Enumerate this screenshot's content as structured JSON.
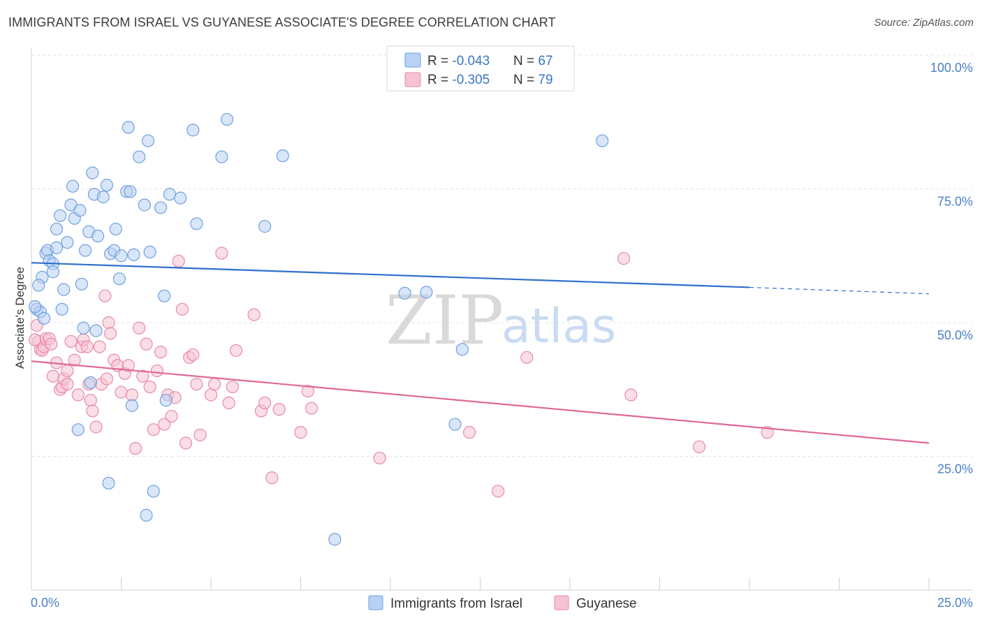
{
  "title": "IMMIGRANTS FROM ISRAEL VS GUYANESE ASSOCIATE'S DEGREE CORRELATION CHART",
  "source": "Source: ZipAtlas.com",
  "watermark": {
    "zip": "ZIP",
    "atlas": "atlas"
  },
  "colors": {
    "blue": "#6fa0e0",
    "blue_fill": "#b9d2f3",
    "blue_line": "#2f6fcc",
    "pink": "#e88aa8",
    "pink_fill": "#f5c3d3",
    "pink_line": "#e0689a"
  },
  "legend": {
    "rows": [
      {
        "r_label": "R = ",
        "r_value": "-0.043",
        "n_label": "N = ",
        "n_value": "67"
      },
      {
        "r_label": "R = ",
        "r_value": "-0.305",
        "n_label": "N = ",
        "n_value": "79"
      }
    ]
  },
  "bottom_legend": [
    "Immigrants from Israel",
    "Guyanese"
  ],
  "chart_data": {
    "type": "scatter",
    "xlabel": "",
    "ylabel": "Associate's Degree",
    "xlim": [
      0,
      25
    ],
    "ylim": [
      0,
      100
    ],
    "x_tick_labels": [
      "0.0%",
      "25.0%"
    ],
    "y_ticks": [
      25,
      50,
      75,
      100
    ],
    "y_tick_labels": [
      "25.0%",
      "50.0%",
      "75.0%",
      "100.0%"
    ],
    "grid": true,
    "legend_position": "top-center",
    "series": [
      {
        "name": "Immigrants from Israel",
        "color": "blue",
        "trend": {
          "x0": 0,
          "y0": 61.2,
          "x1": 20,
          "y1": 56.6,
          "dashed_to": 25,
          "dashed_y": 55.4
        },
        "points": [
          [
            0.15,
            52.5
          ],
          [
            0.25,
            52
          ],
          [
            0.3,
            58.5
          ],
          [
            0.35,
            50.8
          ],
          [
            0.4,
            63
          ],
          [
            0.45,
            63.5
          ],
          [
            0.5,
            61.6
          ],
          [
            0.6,
            61
          ],
          [
            0.6,
            59.5
          ],
          [
            0.7,
            64
          ],
          [
            0.7,
            67.5
          ],
          [
            0.8,
            70
          ],
          [
            0.85,
            52.5
          ],
          [
            0.9,
            56.2
          ],
          [
            1.0,
            65
          ],
          [
            1.1,
            72
          ],
          [
            1.15,
            75.5
          ],
          [
            1.2,
            69.5
          ],
          [
            1.3,
            30
          ],
          [
            1.35,
            71
          ],
          [
            1.4,
            57.2
          ],
          [
            1.45,
            49
          ],
          [
            1.5,
            63.5
          ],
          [
            1.6,
            67
          ],
          [
            1.65,
            38.8
          ],
          [
            1.7,
            78
          ],
          [
            1.75,
            74
          ],
          [
            1.8,
            48.5
          ],
          [
            1.85,
            66.2
          ],
          [
            2.0,
            73.5
          ],
          [
            2.1,
            75.7
          ],
          [
            2.15,
            20
          ],
          [
            2.2,
            62.9
          ],
          [
            2.3,
            63.5
          ],
          [
            2.35,
            67.5
          ],
          [
            2.45,
            58.2
          ],
          [
            2.5,
            62.5
          ],
          [
            2.65,
            74.5
          ],
          [
            2.7,
            86.5
          ],
          [
            2.75,
            74.5
          ],
          [
            2.8,
            34.5
          ],
          [
            2.85,
            62.7
          ],
          [
            3.0,
            81
          ],
          [
            3.15,
            72
          ],
          [
            3.2,
            14
          ],
          [
            3.25,
            84
          ],
          [
            3.3,
            63.2
          ],
          [
            3.4,
            18.5
          ],
          [
            3.6,
            71.5
          ],
          [
            3.7,
            55
          ],
          [
            3.75,
            35.5
          ],
          [
            3.85,
            74
          ],
          [
            4.15,
            73.3
          ],
          [
            4.5,
            86
          ],
          [
            4.6,
            68.5
          ],
          [
            5.3,
            81
          ],
          [
            5.45,
            88
          ],
          [
            6.5,
            68
          ],
          [
            7.0,
            81.2
          ],
          [
            8.45,
            9.5
          ],
          [
            10.4,
            55.5
          ],
          [
            11.0,
            55.7
          ],
          [
            11.8,
            31
          ],
          [
            12.0,
            45
          ],
          [
            15.9,
            84
          ],
          [
            0.1,
            53
          ],
          [
            0.2,
            57
          ]
        ]
      },
      {
        "name": "Guyanese",
        "color": "pink",
        "trend": {
          "x0": 0,
          "y0": 42.8,
          "x1": 25,
          "y1": 27.5
        },
        "points": [
          [
            0.15,
            49.5
          ],
          [
            0.2,
            46.5
          ],
          [
            0.25,
            45
          ],
          [
            0.3,
            44.8
          ],
          [
            0.35,
            45.5
          ],
          [
            0.4,
            47
          ],
          [
            0.5,
            47
          ],
          [
            0.55,
            46
          ],
          [
            0.6,
            40
          ],
          [
            0.7,
            42.5
          ],
          [
            0.8,
            37.5
          ],
          [
            0.85,
            38
          ],
          [
            0.9,
            39.5
          ],
          [
            1.0,
            38.5
          ],
          [
            1.1,
            46.5
          ],
          [
            1.2,
            43
          ],
          [
            1.3,
            36.5
          ],
          [
            1.4,
            45.5
          ],
          [
            1.45,
            46.8
          ],
          [
            1.55,
            45.5
          ],
          [
            1.6,
            38.5
          ],
          [
            1.65,
            35.5
          ],
          [
            1.7,
            33.5
          ],
          [
            1.8,
            30.5
          ],
          [
            1.9,
            45.5
          ],
          [
            1.95,
            38.5
          ],
          [
            2.05,
            55
          ],
          [
            2.1,
            39.5
          ],
          [
            2.15,
            50
          ],
          [
            2.2,
            48
          ],
          [
            2.3,
            43
          ],
          [
            2.4,
            42
          ],
          [
            2.5,
            37
          ],
          [
            2.6,
            40.5
          ],
          [
            2.7,
            42
          ],
          [
            2.8,
            36.5
          ],
          [
            2.9,
            26.5
          ],
          [
            3.0,
            49
          ],
          [
            3.1,
            40
          ],
          [
            3.2,
            46
          ],
          [
            3.3,
            38
          ],
          [
            3.4,
            30
          ],
          [
            3.5,
            41
          ],
          [
            3.6,
            44.5
          ],
          [
            3.7,
            31
          ],
          [
            3.8,
            36.5
          ],
          [
            3.9,
            32.5
          ],
          [
            4.0,
            36
          ],
          [
            4.1,
            61.5
          ],
          [
            4.2,
            52.5
          ],
          [
            4.3,
            27.5
          ],
          [
            4.4,
            43.5
          ],
          [
            4.5,
            44
          ],
          [
            4.6,
            38.5
          ],
          [
            4.7,
            29
          ],
          [
            5.0,
            36.5
          ],
          [
            5.1,
            38.5
          ],
          [
            5.3,
            63
          ],
          [
            5.5,
            35
          ],
          [
            5.6,
            38
          ],
          [
            5.7,
            44.8
          ],
          [
            6.2,
            51.5
          ],
          [
            6.4,
            33.5
          ],
          [
            6.5,
            35
          ],
          [
            6.7,
            21
          ],
          [
            6.9,
            33.8
          ],
          [
            7.5,
            29.5
          ],
          [
            7.7,
            37.2
          ],
          [
            7.8,
            34
          ],
          [
            9.7,
            24.7
          ],
          [
            12.2,
            29.5
          ],
          [
            13.0,
            18.5
          ],
          [
            13.8,
            43.5
          ],
          [
            16.5,
            62
          ],
          [
            16.7,
            36.5
          ],
          [
            18.6,
            26.8
          ],
          [
            20.5,
            29.5
          ],
          [
            0.1,
            46.8
          ],
          [
            1.0,
            41
          ]
        ]
      }
    ]
  }
}
